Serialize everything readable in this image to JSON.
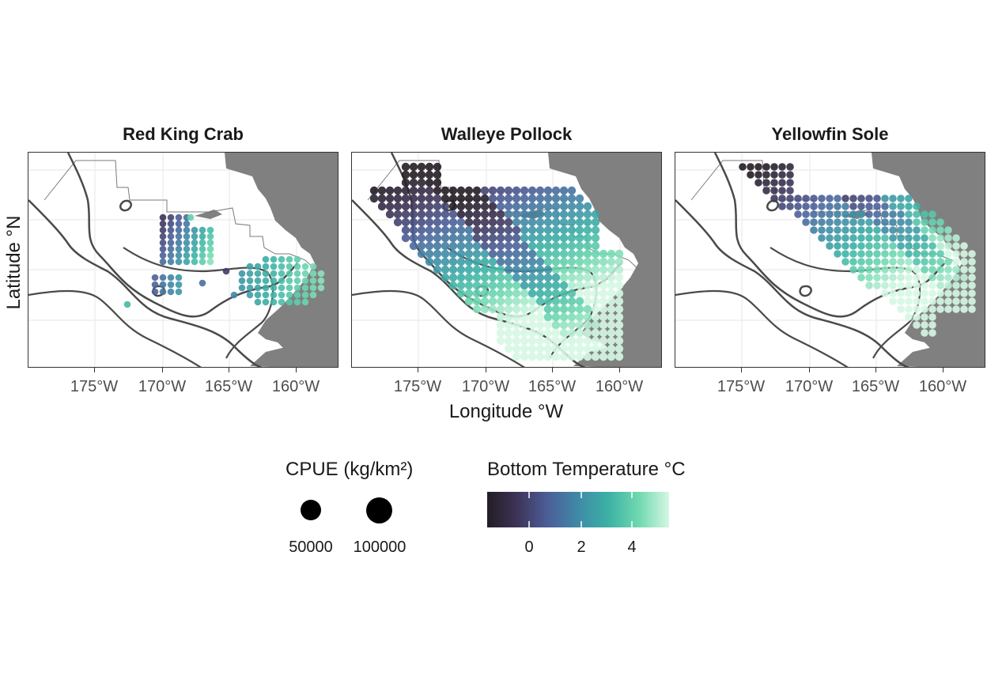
{
  "panels": [
    {
      "title": "Red King Crab",
      "key": "rkc"
    },
    {
      "title": "Walleye Pollock",
      "key": "pollock"
    },
    {
      "title": "Yellowfin Sole",
      "key": "yfs"
    }
  ],
  "axes": {
    "xlabel": "Longitude °W",
    "ylabel": "Latitude °N",
    "x_ticks": [
      "175°W",
      "170°W",
      "165°W",
      "160°W"
    ]
  },
  "legend": {
    "size_title": "CPUE (kg/km²)",
    "size_breaks": [
      "50000",
      "100000"
    ],
    "color_title": "Bottom Temperature °C",
    "color_breaks": [
      "0",
      "2",
      "4"
    ],
    "color_scale": [
      "#231c24",
      "#3e3458",
      "#4c5e99",
      "#3f8aa6",
      "#3cb1a5",
      "#6fd8b0",
      "#d6f7e3"
    ]
  },
  "colors": {
    "land": "#808080",
    "coast_line": "#4a4a4a",
    "panel_border": "#333333"
  }
}
